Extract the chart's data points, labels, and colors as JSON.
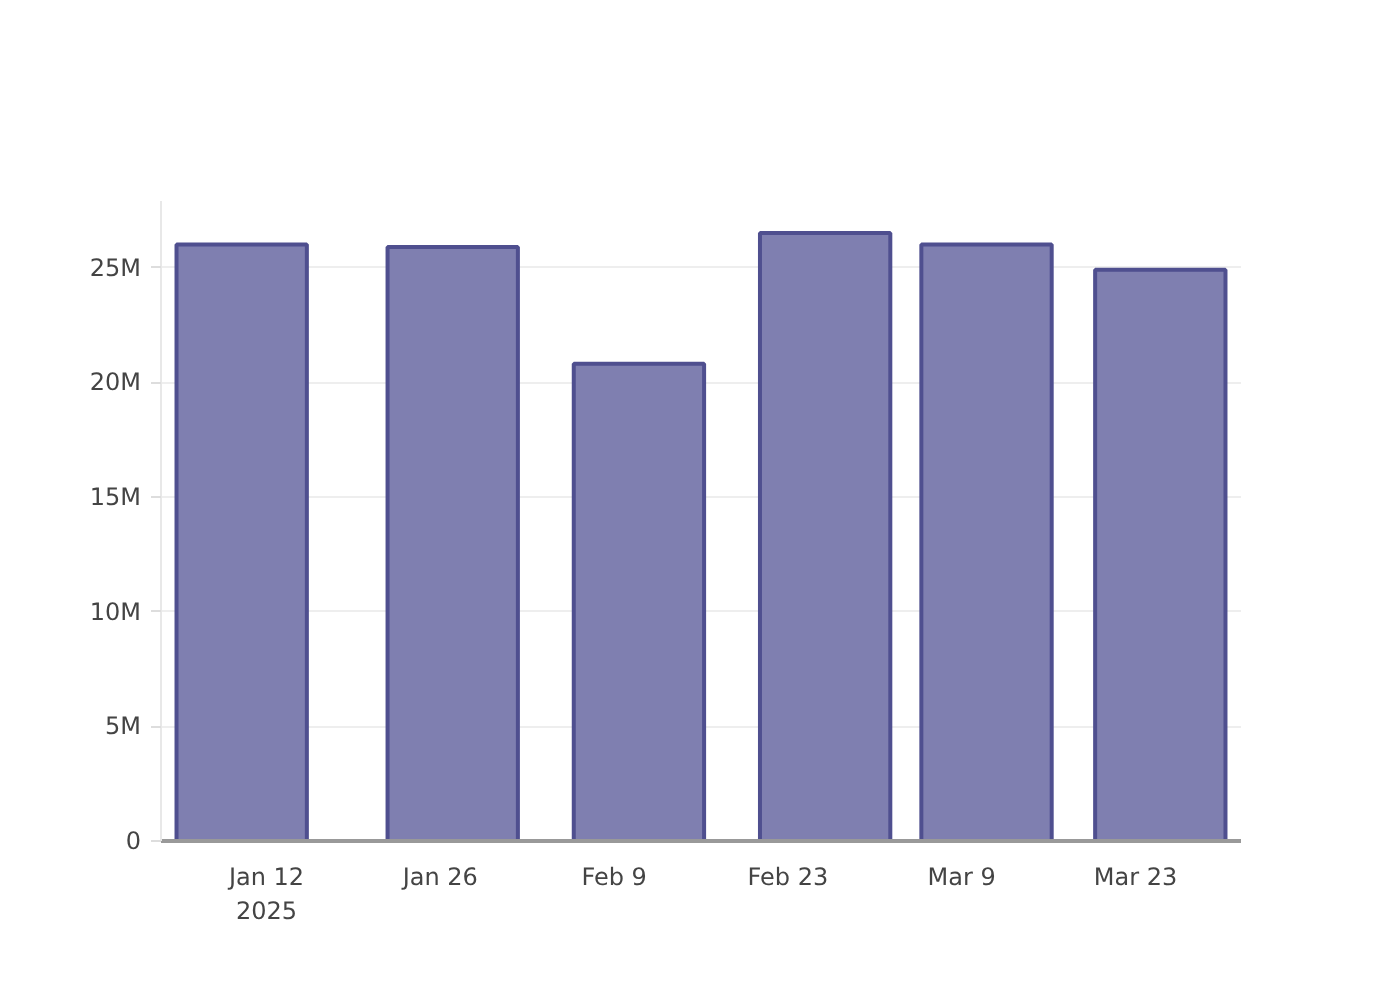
{
  "chart_data": {
    "type": "bar",
    "x": [
      "2025-01-10",
      "2025-01-27",
      "2025-02-11",
      "2025-02-26",
      "2025-03-11",
      "2025-03-25"
    ],
    "values": [
      26000000,
      25900000,
      20800000,
      26500000,
      26000000,
      24900000
    ],
    "color": "#7f7fb0",
    "xlim": [
      "2025-01-03T12:00",
      "2025-03-31T12:00"
    ],
    "xticks": [
      {
        "value": "2025-01-12",
        "label": "Jan 12\n2025"
      },
      {
        "value": "2025-01-26",
        "label": "Jan 26"
      },
      {
        "value": "2025-02-09",
        "label": "Feb 9"
      },
      {
        "value": "2025-02-23",
        "label": "Feb 23"
      },
      {
        "value": "2025-03-09",
        "label": "Mar 9"
      },
      {
        "value": "2025-03-23",
        "label": "Mar 23"
      }
    ],
    "ylim": [
      0,
      27900000
    ],
    "yticks": [
      {
        "value": 0,
        "label": "0"
      },
      {
        "value": 5000000,
        "label": "5M"
      },
      {
        "value": 10000000,
        "label": "10M"
      },
      {
        "value": 15000000,
        "label": "15M"
      },
      {
        "value": 20000000,
        "label": "20M"
      },
      {
        "value": 25000000,
        "label": "25M"
      }
    ],
    "grid": "y"
  }
}
